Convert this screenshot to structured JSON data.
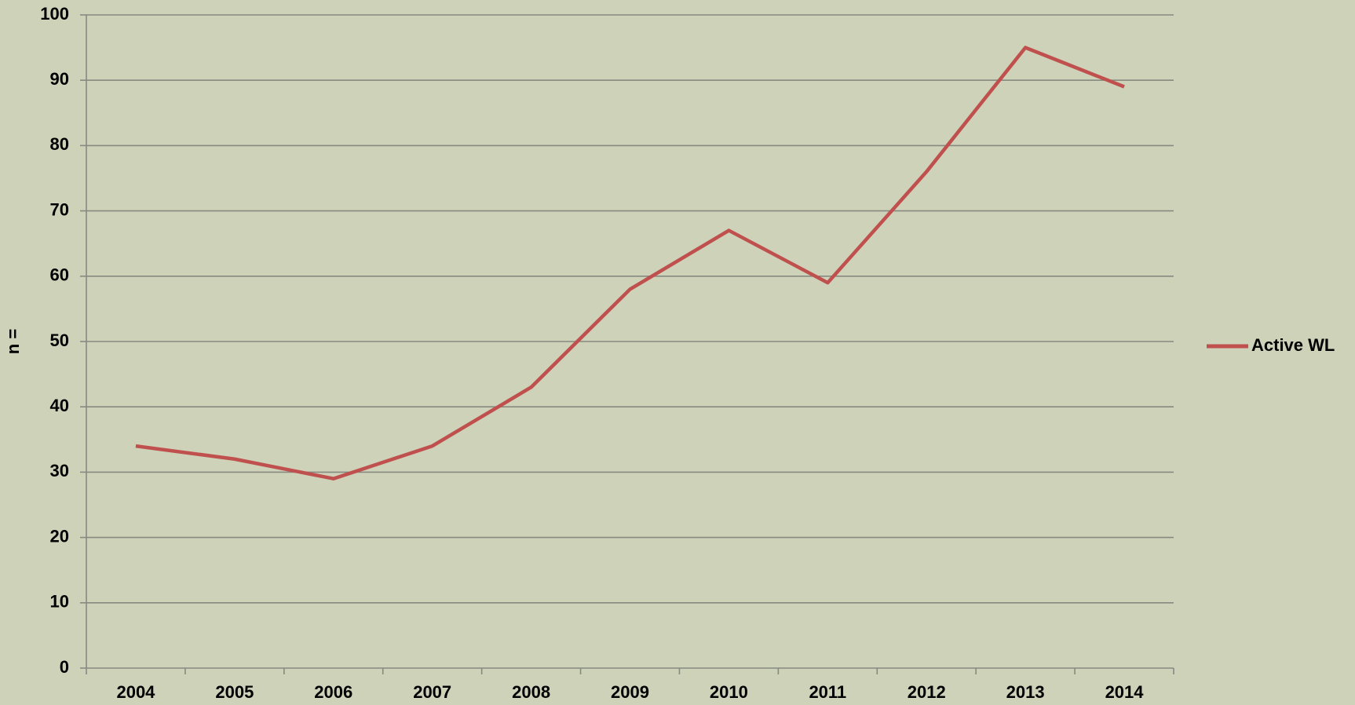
{
  "chart_data": {
    "type": "line",
    "y_label": "n =",
    "categories": [
      "2004",
      "2005",
      "2006",
      "2007",
      "2008",
      "2009",
      "2010",
      "2011",
      "2012",
      "2013",
      "2014"
    ],
    "series": [
      {
        "name": "Active WL",
        "color": "#c0504d",
        "values": [
          34,
          32,
          29,
          34,
          43,
          58,
          67,
          59,
          76,
          95,
          89
        ]
      }
    ],
    "ylim": [
      0,
      100
    ],
    "yticks": [
      0,
      10,
      20,
      30,
      40,
      50,
      60,
      70,
      80,
      90,
      100
    ],
    "grid": true,
    "legend": "right"
  }
}
